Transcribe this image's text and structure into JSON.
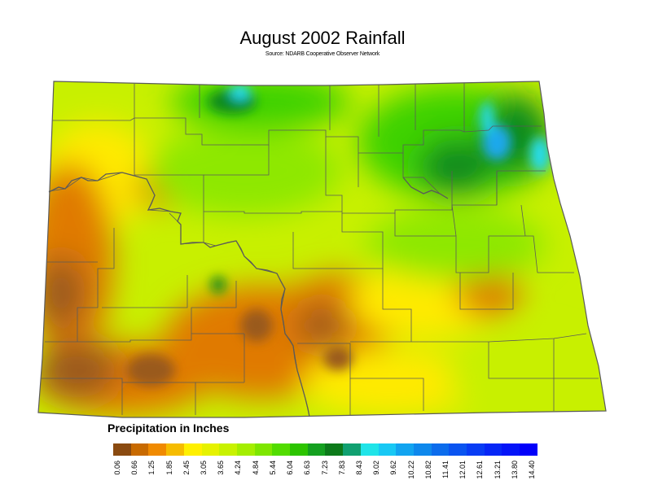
{
  "header": {
    "title": "August 2002 Rainfall",
    "subtitle": "Source: NDARB Cooperative Observer Network"
  },
  "legend": {
    "title": "Precipitation in Inches",
    "ticks": [
      "0.06",
      "0.66",
      "1.25",
      "1.85",
      "2.45",
      "3.05",
      "3.65",
      "4.24",
      "4.84",
      "5.44",
      "6.04",
      "6.63",
      "7.23",
      "7.83",
      "8.43",
      "9.02",
      "9.62",
      "10.22",
      "10.82",
      "11.41",
      "12.01",
      "12.61",
      "13.21",
      "13.80",
      "14.40"
    ],
    "colors": [
      "#8a4a10",
      "#c86a00",
      "#f08a00",
      "#f6bc00",
      "#fff000",
      "#e6f200",
      "#c8f200",
      "#a4ee00",
      "#7ee600",
      "#52dc00",
      "#2cc400",
      "#14a020",
      "#0c7a1a",
      "#10a070",
      "#20e4e8",
      "#18c8f4",
      "#12a4f0",
      "#0e88ec",
      "#0c6cec",
      "#0a54f0",
      "#083cf4",
      "#0626f6",
      "#0414f8",
      "#0200fa"
    ]
  },
  "map": {
    "colors": {
      "brown": "#9a5a1a",
      "orange": "#e07a00",
      "yellow": "#ffea00",
      "yellow_green": "#c8f000",
      "light_green": "#8ee800",
      "green": "#3ed200",
      "dark_green": "#108a1c",
      "cyan": "#28dcf0",
      "blue": "#1aa8ec",
      "boundary": "#5a5a5a"
    }
  }
}
